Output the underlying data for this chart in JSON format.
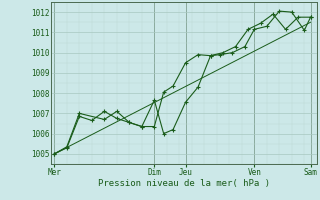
{
  "xlabel": "Pression niveau de la mer( hPa )",
  "ylim": [
    1004.5,
    1012.5
  ],
  "yticks": [
    1005,
    1006,
    1007,
    1008,
    1009,
    1010,
    1011,
    1012
  ],
  "day_labels": [
    "Mer",
    "Dim",
    "Jeu",
    "Ven",
    "Sam"
  ],
  "day_positions": [
    0,
    3.2,
    4.2,
    6.4,
    8.2
  ],
  "bg_color": "#cce8e8",
  "line_color": "#1a5c1a",
  "grid_color_major": "#a8c8c0",
  "grid_color_minor": "#bcd8d0",
  "line1_x": [
    0,
    0.4,
    0.8,
    1.2,
    1.6,
    2.0,
    2.4,
    2.8,
    3.2,
    3.5,
    3.8,
    4.2,
    4.6,
    5.0,
    5.3,
    5.7,
    6.1,
    6.4,
    6.8,
    7.2,
    7.6,
    8.0,
    8.2
  ],
  "line1_y": [
    1005.0,
    1005.3,
    1006.85,
    1006.65,
    1007.1,
    1006.75,
    1006.55,
    1006.35,
    1007.65,
    1006.0,
    1006.2,
    1007.55,
    1008.3,
    1009.85,
    1009.9,
    1010.0,
    1010.3,
    1011.15,
    1011.3,
    1012.05,
    1012.0,
    1011.1,
    1011.75
  ],
  "line2_x": [
    0,
    0.4,
    0.8,
    1.6,
    2.0,
    2.4,
    2.8,
    3.2,
    3.5,
    3.8,
    4.2,
    4.6,
    5.0,
    5.4,
    5.8,
    6.2,
    6.6,
    7.0,
    7.4,
    7.8,
    8.2
  ],
  "line2_y": [
    1005.0,
    1005.35,
    1007.0,
    1006.7,
    1007.1,
    1006.55,
    1006.35,
    1006.35,
    1008.05,
    1008.35,
    1009.5,
    1009.9,
    1009.85,
    1010.0,
    1010.3,
    1011.15,
    1011.45,
    1011.9,
    1011.15,
    1011.75,
    1011.75
  ],
  "trend_x": [
    0,
    8.2
  ],
  "trend_y": [
    1005.0,
    1011.5
  ],
  "xlim": [
    -0.1,
    8.4
  ],
  "vlines": [
    0,
    3.2,
    4.2,
    6.4,
    8.2
  ]
}
